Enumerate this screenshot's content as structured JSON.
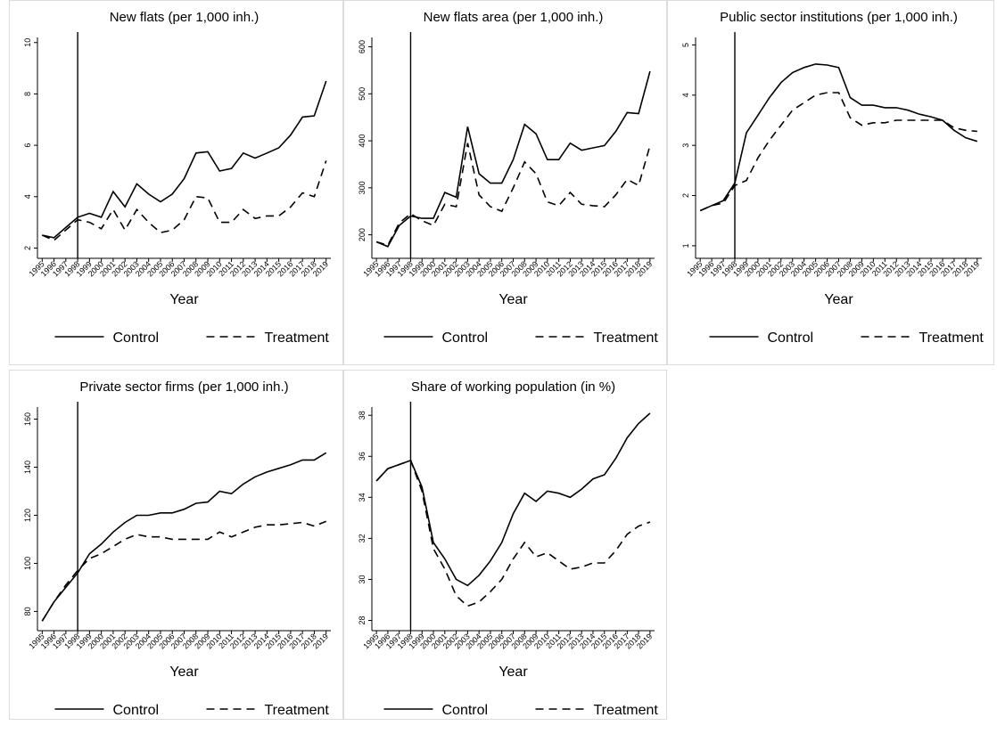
{
  "chart_data": [
    {
      "type": "line",
      "title": "New flats (per 1,000 inh.)",
      "xlabel": "Year",
      "x": [
        1995,
        1996,
        1997,
        1998,
        1999,
        2000,
        2001,
        2002,
        2003,
        2004,
        2005,
        2006,
        2007,
        2008,
        2009,
        2010,
        2011,
        2012,
        2013,
        2014,
        2015,
        2016,
        2017,
        2018,
        2019
      ],
      "xlim": [
        1994.6,
        2019.4
      ],
      "ylim": [
        1.6,
        10.2
      ],
      "yticks": [
        2,
        4,
        6,
        8,
        10
      ],
      "vline": 1998,
      "series": [
        {
          "name": "Control",
          "color": "#000000",
          "line_style": "solid",
          "values": [
            2.5,
            2.4,
            2.8,
            3.2,
            3.35,
            3.2,
            4.2,
            3.6,
            4.5,
            4.1,
            3.8,
            4.1,
            4.7,
            5.7,
            5.75,
            5.0,
            5.1,
            5.7,
            5.5,
            5.7,
            5.9,
            6.4,
            7.1,
            7.15,
            8.5
          ]
        },
        {
          "name": "Treatment",
          "color": "#000000",
          "line_style": "dashed",
          "values": [
            2.5,
            2.3,
            2.7,
            3.1,
            3.0,
            2.75,
            3.5,
            2.7,
            3.5,
            3.0,
            2.6,
            2.7,
            3.1,
            4.0,
            3.95,
            3.0,
            3.0,
            3.5,
            3.15,
            3.25,
            3.25,
            3.6,
            4.15,
            4.0,
            5.4
          ]
        }
      ]
    },
    {
      "type": "line",
      "title": "New flats area (per 1,000 inh.)",
      "xlabel": "Year",
      "x": [
        1995,
        1996,
        1997,
        1998,
        1999,
        2000,
        2001,
        2002,
        2003,
        2004,
        2005,
        2006,
        2007,
        2008,
        2009,
        2010,
        2011,
        2012,
        2013,
        2014,
        2015,
        2016,
        2017,
        2018,
        2019
      ],
      "xlim": [
        1994.6,
        2019.4
      ],
      "ylim": [
        150,
        620
      ],
      "yticks": [
        200,
        300,
        400,
        500,
        600
      ],
      "vline": 1998,
      "series": [
        {
          "name": "Control",
          "color": "#000000",
          "line_style": "solid",
          "values": [
            185,
            175,
            220,
            240,
            235,
            235,
            290,
            280,
            430,
            330,
            310,
            310,
            360,
            435,
            415,
            360,
            360,
            395,
            380,
            385,
            390,
            420,
            460,
            458,
            548
          ]
        },
        {
          "name": "Treatment",
          "color": "#000000",
          "line_style": "dashed",
          "values": [
            185,
            178,
            225,
            245,
            230,
            220,
            265,
            260,
            395,
            285,
            260,
            250,
            300,
            355,
            330,
            270,
            262,
            290,
            265,
            262,
            260,
            285,
            318,
            305,
            390
          ]
        }
      ]
    },
    {
      "type": "line",
      "title": "Public sector institutions (per 1,000 inh.)",
      "xlabel": "Year",
      "x": [
        1995,
        1996,
        1997,
        1998,
        1999,
        2000,
        2001,
        2002,
        2003,
        2004,
        2005,
        2006,
        2007,
        2008,
        2009,
        2010,
        2011,
        2012,
        2013,
        2014,
        2015,
        2016,
        2017,
        2018,
        2019
      ],
      "xlim": [
        1994.6,
        2019.4
      ],
      "ylim": [
        0.75,
        5.15
      ],
      "yticks": [
        1,
        2,
        3,
        4,
        5
      ],
      "vline": 1998,
      "series": [
        {
          "name": "Control",
          "color": "#000000",
          "line_style": "solid",
          "values": [
            1.7,
            1.8,
            1.9,
            2.25,
            3.25,
            3.6,
            3.95,
            4.25,
            4.45,
            4.55,
            4.62,
            4.6,
            4.55,
            3.95,
            3.8,
            3.8,
            3.75,
            3.75,
            3.7,
            3.62,
            3.57,
            3.5,
            3.3,
            3.15,
            3.08
          ]
        },
        {
          "name": "Treatment",
          "color": "#000000",
          "line_style": "dashed",
          "values": [
            1.7,
            1.8,
            1.85,
            2.2,
            2.3,
            2.75,
            3.1,
            3.4,
            3.7,
            3.85,
            4.0,
            4.05,
            4.05,
            3.55,
            3.4,
            3.45,
            3.45,
            3.5,
            3.5,
            3.5,
            3.5,
            3.5,
            3.35,
            3.3,
            3.28
          ]
        }
      ]
    },
    {
      "type": "line",
      "title": "Private sector firms (per 1,000 inh.)",
      "xlabel": "Year",
      "x": [
        1995,
        1996,
        1997,
        1998,
        1999,
        2000,
        2001,
        2002,
        2003,
        2004,
        2005,
        2006,
        2007,
        2008,
        2009,
        2010,
        2011,
        2012,
        2013,
        2014,
        2015,
        2016,
        2017,
        2018,
        2019
      ],
      "xlim": [
        1994.6,
        2019.4
      ],
      "ylim": [
        72,
        165
      ],
      "yticks": [
        80,
        100,
        120,
        140,
        160
      ],
      "vline": 1998,
      "series": [
        {
          "name": "Control",
          "color": "#000000",
          "line_style": "solid",
          "values": [
            76,
            84,
            90,
            96,
            104,
            108,
            113,
            117,
            120,
            120,
            121,
            121,
            122.5,
            125,
            125.5,
            130,
            129,
            133,
            136,
            138,
            139.5,
            141,
            143,
            143,
            146
          ]
        },
        {
          "name": "Treatment",
          "color": "#000000",
          "line_style": "dashed",
          "values": [
            76,
            84,
            91,
            97,
            102,
            104,
            107,
            110,
            112,
            111,
            111,
            110,
            110,
            110,
            110,
            113,
            111,
            113,
            115,
            116,
            116,
            116.5,
            117,
            115.5,
            117.5
          ]
        }
      ]
    },
    {
      "type": "line",
      "title": "Share of working population (in %)",
      "xlabel": "Year",
      "x": [
        1995,
        1996,
        1997,
        1998,
        1999,
        2000,
        2001,
        2002,
        2003,
        2004,
        2005,
        2006,
        2007,
        2008,
        2009,
        2010,
        2011,
        2012,
        2013,
        2014,
        2015,
        2016,
        2017,
        2018,
        2019
      ],
      "xlim": [
        1994.6,
        2019.4
      ],
      "ylim": [
        27.5,
        38.4
      ],
      "yticks": [
        28,
        30,
        32,
        34,
        36,
        38
      ],
      "vline": 1998,
      "series": [
        {
          "name": "Control",
          "color": "#000000",
          "line_style": "solid",
          "values": [
            34.8,
            35.4,
            35.6,
            35.8,
            34.5,
            31.8,
            31.0,
            30.0,
            29.7,
            30.2,
            30.9,
            31.8,
            33.2,
            34.2,
            33.8,
            34.3,
            34.2,
            34.0,
            34.4,
            34.9,
            35.1,
            35.9,
            36.9,
            37.6,
            38.1
          ]
        },
        {
          "name": "Treatment",
          "color": "#000000",
          "line_style": "dashed",
          "values": [
            34.8,
            35.4,
            35.6,
            35.8,
            34.3,
            31.5,
            30.5,
            29.2,
            28.7,
            28.9,
            29.4,
            30.0,
            31.0,
            31.8,
            31.1,
            31.3,
            30.9,
            30.5,
            30.6,
            30.8,
            30.8,
            31.4,
            32.2,
            32.6,
            32.8
          ]
        }
      ]
    }
  ]
}
